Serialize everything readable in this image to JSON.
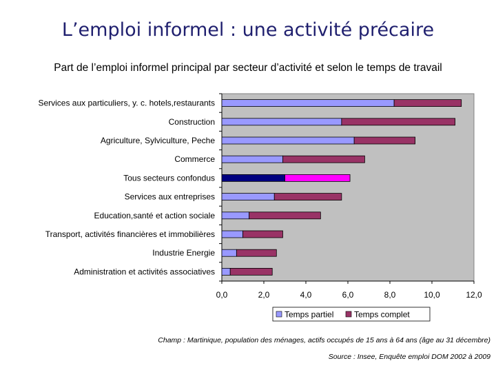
{
  "slide": {
    "title": "L’emploi informel : une activité précaire",
    "subtitle": "Part de l’emploi informel principal par secteur d’activité et selon le temps de travail"
  },
  "chart_data": {
    "type": "bar",
    "orientation": "horizontal",
    "stacked": true,
    "categories": [
      "Services aux particuliers, y. c. hotels,restaurants",
      "Construction",
      "Agriculture, Sylviculture, Peche",
      "Commerce",
      "Tous secteurs confondus",
      "Services aux entreprises",
      "Education,santé et action sociale",
      "Transport, activités financières et immobilières",
      "Industrie Energie",
      "Administration et activités associatives"
    ],
    "series": [
      {
        "name": "Temps partiel",
        "values": [
          8.2,
          5.7,
          6.3,
          2.9,
          3.0,
          2.5,
          1.3,
          1.0,
          0.7,
          0.4
        ]
      },
      {
        "name": "Temps complet",
        "values": [
          3.2,
          5.4,
          2.9,
          3.9,
          3.1,
          3.2,
          3.4,
          1.9,
          1.9,
          2.0
        ]
      }
    ],
    "highlight_category": "Tous secteurs confondus",
    "xlim": [
      0,
      12
    ],
    "xticks": [
      "0,0",
      "2,0",
      "4,0",
      "6,0",
      "8,0",
      "10,0",
      "12,0"
    ],
    "grid": false,
    "legend_position": "bottom",
    "colors": {
      "plot_background": "#c0c0c0",
      "partiel": "#9999ff",
      "complet": "#993366",
      "highlight_partiel": "#000080",
      "highlight_complet": "#ff00ff"
    }
  },
  "notes": {
    "champ": "Champ : Martinique, population des ménages, actifs occupés de 15 ans à 64 ans (âge au 31 décembre)",
    "source": "Source : Insee, Enquête emploi DOM 2002 à 2009"
  }
}
